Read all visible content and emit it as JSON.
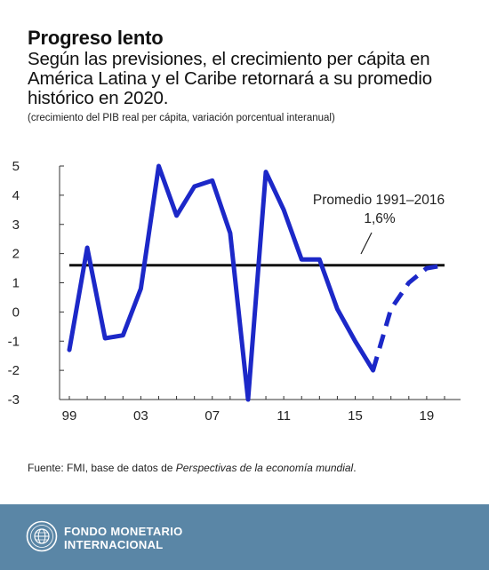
{
  "header": {
    "title": "Progreso lento",
    "subtitle": "Según las previsiones, el crecimiento per cápita en América Latina y el Caribe retornará a su promedio histórico en 2020.",
    "note": "(crecimiento del PIB real per cápita, variación porcentual interanual)"
  },
  "chart_data": {
    "type": "line",
    "title": "",
    "xlabel": "",
    "ylabel": "",
    "x_ticks": [
      "99",
      "03",
      "07",
      "11",
      "15",
      "19"
    ],
    "y_ticks": [
      "5",
      "4",
      "3",
      "2",
      "1",
      "0",
      "-1",
      "-2",
      "-3"
    ],
    "xlim": [
      1999,
      2020
    ],
    "ylim": [
      -3,
      5
    ],
    "grid": false,
    "line_color": "#1c28c8",
    "average_line_color": "#111111",
    "series": [
      {
        "style": "solid",
        "x": [
          1999,
          2000,
          2001,
          2002,
          2003,
          2004,
          2005,
          2006,
          2007,
          2008,
          2009,
          2010,
          2011,
          2012,
          2013,
          2014,
          2015,
          2016
        ],
        "values": [
          -1.3,
          2.2,
          -0.9,
          -0.8,
          0.8,
          5.0,
          3.3,
          4.3,
          4.5,
          2.7,
          -3.0,
          4.8,
          3.5,
          1.8,
          1.8,
          0.1,
          -1.0,
          -2.0
        ]
      },
      {
        "style": "dashed",
        "x": [
          2016,
          2017,
          2018,
          2019,
          2020
        ],
        "values": [
          -2.0,
          0.1,
          1.0,
          1.5,
          1.6
        ]
      }
    ],
    "reference_line": {
      "value": 1.6,
      "label_line1": "Promedio 1991–2016",
      "label_line2": "1,6%"
    }
  },
  "source": {
    "prefix": "Fuente: FMI, base de datos de ",
    "italic": "Perspectivas de la economía mundial",
    "suffix": "."
  },
  "footer": {
    "line1": "FONDO MONETARIO",
    "line2": "INTERNACIONAL",
    "bg_color": "#5a86a6"
  }
}
